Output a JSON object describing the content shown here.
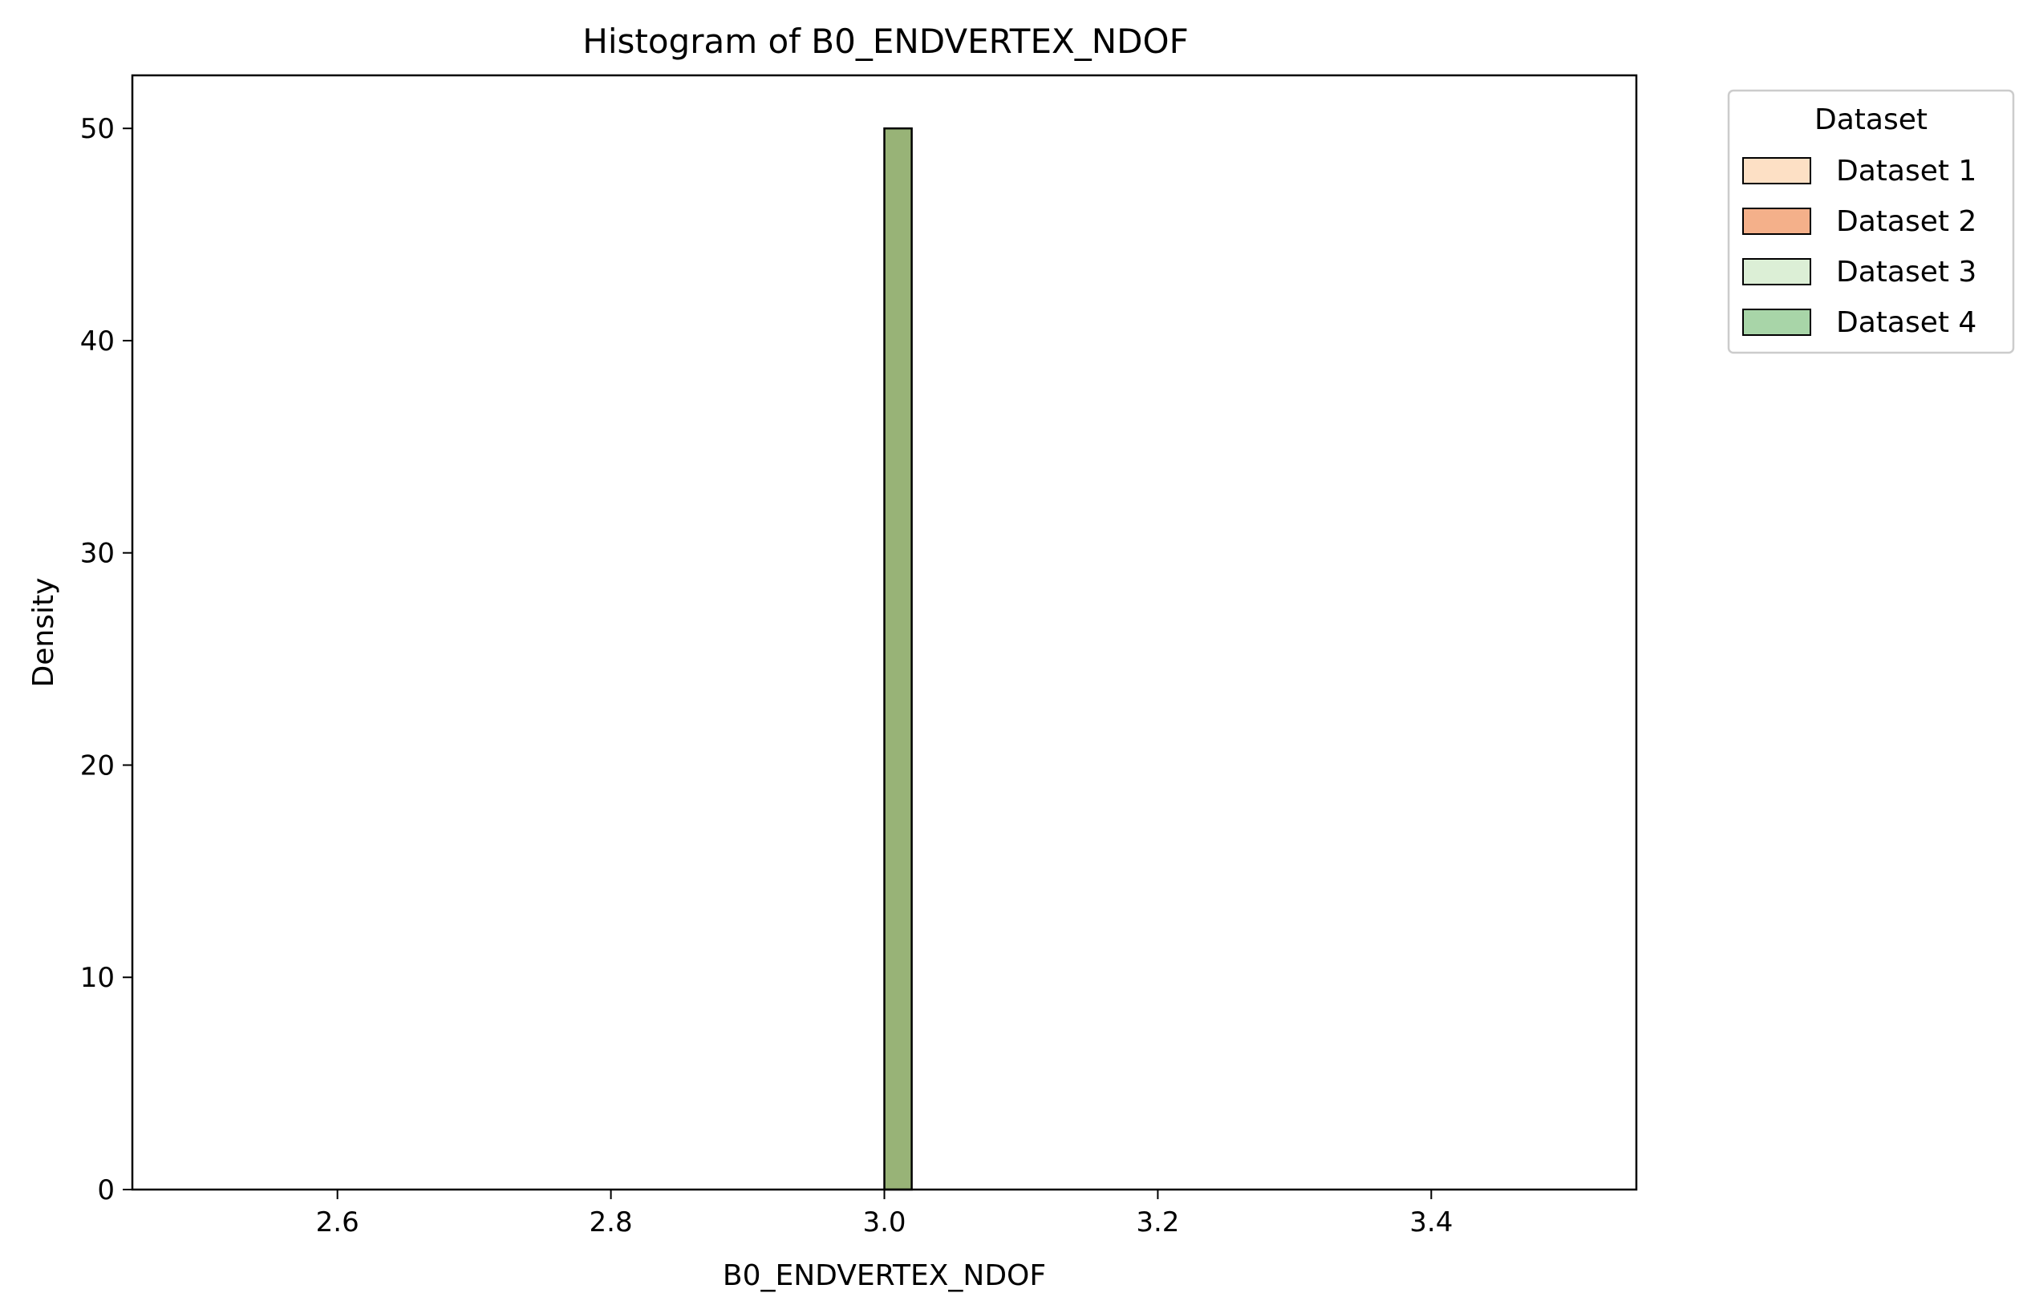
{
  "chart_data": {
    "type": "bar",
    "title": "Histogram of B0_ENDVERTEX_NDOF",
    "xlabel": "B0_ENDVERTEX_NDOF",
    "ylabel": "Density",
    "xlim": [
      2.45,
      3.55
    ],
    "ylim": [
      0,
      52.5
    ],
    "x_ticks": [
      2.6,
      2.8,
      3.0,
      3.2,
      3.4
    ],
    "x_tick_labels": [
      "2.6",
      "2.8",
      "3.0",
      "3.2",
      "3.4"
    ],
    "y_ticks": [
      0,
      10,
      20,
      30,
      40,
      50
    ],
    "y_tick_labels": [
      "0",
      "10",
      "20",
      "30",
      "40",
      "50"
    ],
    "grid": false,
    "legend": {
      "title": "Dataset",
      "placement": "outside-upper-right"
    },
    "baseline_range": [
      2.5,
      3.5
    ],
    "bin_width": 0.02,
    "series": [
      {
        "name": "Dataset 1",
        "color": "#fde0c5",
        "bins": [
          {
            "x0": 3.0,
            "x1": 3.02,
            "value": 50
          }
        ]
      },
      {
        "name": "Dataset 2",
        "color": "#f4b08a",
        "bins": [
          {
            "x0": 3.0,
            "x1": 3.02,
            "value": 50
          }
        ]
      },
      {
        "name": "Dataset 3",
        "color": "#dcefd6",
        "bins": [
          {
            "x0": 3.0,
            "x1": 3.02,
            "value": 50
          }
        ]
      },
      {
        "name": "Dataset 4",
        "color": "#a8d5a8",
        "bins": [
          {
            "x0": 3.0,
            "x1": 3.02,
            "value": 50
          }
        ]
      }
    ],
    "bar_display_color": "#98b377"
  }
}
